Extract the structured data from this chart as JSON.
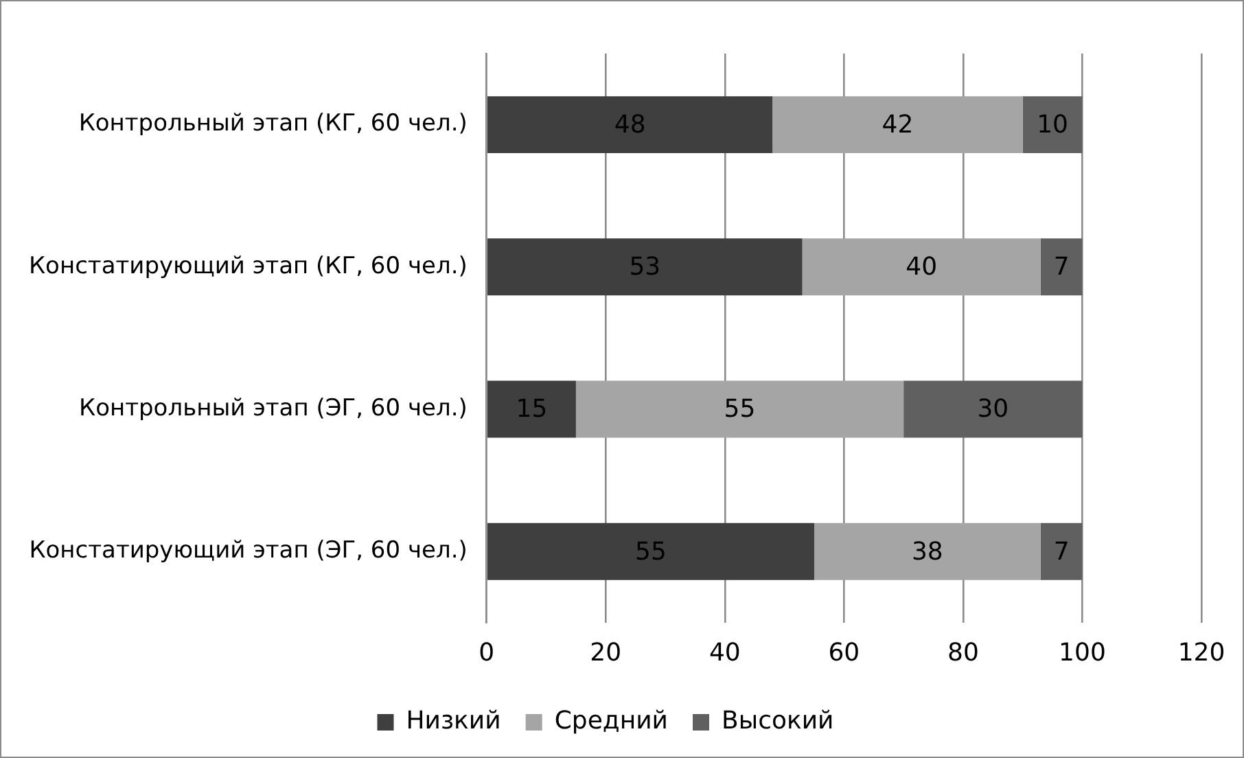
{
  "chart_data": {
    "type": "bar",
    "orientation": "horizontal",
    "stacked": true,
    "categories": [
      "Контрольный этап (КГ, 60 чел.)",
      "Констатирующий этап (КГ, 60 чел.)",
      "Контрольный этап (ЭГ, 60 чел.)",
      "Констатирующий этап (ЭГ, 60 чел.)"
    ],
    "series": [
      {
        "name": "Низкий",
        "color": "#3f3f3f",
        "values": [
          48,
          53,
          15,
          55
        ]
      },
      {
        "name": "Средний",
        "color": "#a5a5a5",
        "values": [
          42,
          40,
          55,
          38
        ]
      },
      {
        "name": "Высокий",
        "color": "#606060",
        "values": [
          10,
          7,
          30,
          7
        ]
      }
    ],
    "xlim": [
      0,
      120
    ],
    "xticks": [
      0,
      20,
      40,
      60,
      80,
      100,
      120
    ],
    "grid": "x",
    "legend": "bottom",
    "data_labels": true
  }
}
